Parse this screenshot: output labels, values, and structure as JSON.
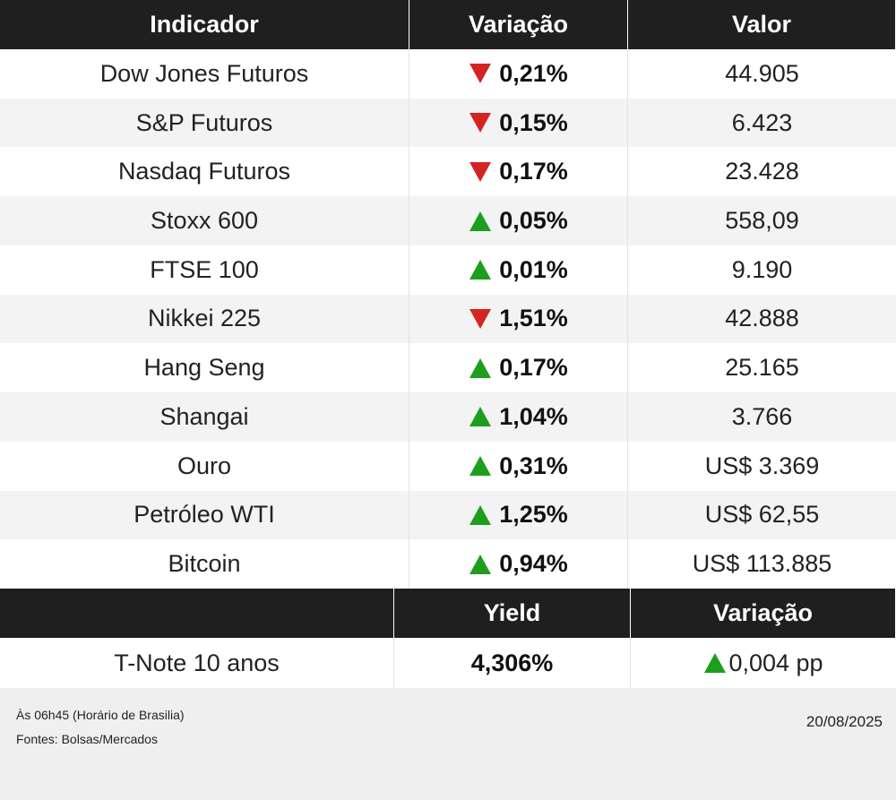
{
  "table": {
    "header": [
      "Indicador",
      "Variação",
      "Valor"
    ],
    "rows": [
      {
        "name": "Dow Jones Futuros",
        "direction": "down",
        "change": "0,21%",
        "value": "44.905"
      },
      {
        "name": "S&P Futuros",
        "direction": "down",
        "change": "0,15%",
        "value": "6.423"
      },
      {
        "name": "Nasdaq Futuros",
        "direction": "down",
        "change": "0,17%",
        "value": "23.428"
      },
      {
        "name": "Stoxx 600",
        "direction": "up",
        "change": "0,05%",
        "value": "558,09"
      },
      {
        "name": "FTSE 100",
        "direction": "up",
        "change": "0,01%",
        "value": "9.190"
      },
      {
        "name": "Nikkei 225",
        "direction": "down",
        "change": "1,51%",
        "value": "42.888"
      },
      {
        "name": "Hang Seng",
        "direction": "up",
        "change": "0,17%",
        "value": "25.165"
      },
      {
        "name": "Shangai",
        "direction": "up",
        "change": "1,04%",
        "value": "3.766"
      },
      {
        "name": "Ouro",
        "direction": "up",
        "change": "0,31%",
        "value": "US$ 3.369"
      },
      {
        "name": "Petróleo WTI",
        "direction": "up",
        "change": "1,25%",
        "value": "US$ 62,55"
      },
      {
        "name": "Bitcoin",
        "direction": "up",
        "change": "0,94%",
        "value": "US$ 113.885"
      }
    ]
  },
  "bond_table": {
    "header": [
      "Yield",
      "Variação"
    ],
    "row": {
      "name": "T-Note 10 anos",
      "yield": "4,306%",
      "direction": "up",
      "change": "0,004 pp"
    }
  },
  "footer": {
    "time_note": "Às 06h45 (Horário de Brasilia)",
    "sources": "Fontes: Bolsas/Mercados",
    "date": "20/08/2025"
  }
}
